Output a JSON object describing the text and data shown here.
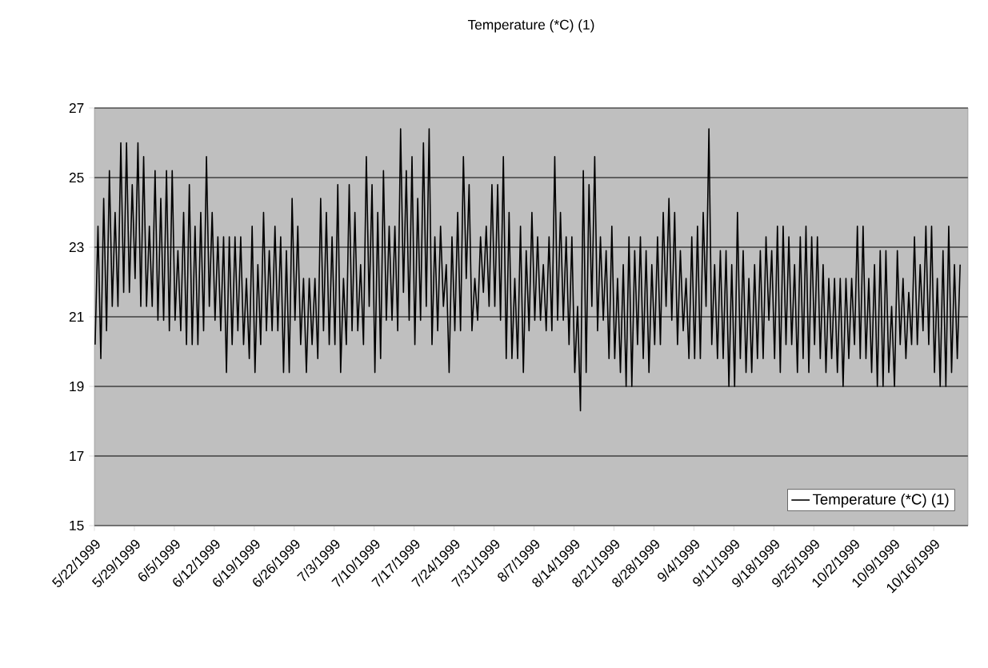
{
  "chart_data": {
    "type": "line",
    "title": "Temperature (*C) (1)",
    "xlim": [
      "1999-05-22",
      "1999-10-22"
    ],
    "ylim": [
      15,
      27
    ],
    "yticks": [
      15,
      17,
      19,
      21,
      23,
      25,
      27
    ],
    "grid": "y",
    "legend": "bottom right",
    "line_style": "solid",
    "xticks": [
      {
        "value": "1999-05-22",
        "label": "5/22/1999"
      },
      {
        "value": "1999-05-29",
        "label": "5/29/1999"
      },
      {
        "value": "1999-06-05",
        "label": "6/5/1999"
      },
      {
        "value": "1999-06-12",
        "label": "6/12/1999"
      },
      {
        "value": "1999-06-19",
        "label": "6/19/1999"
      },
      {
        "value": "1999-06-26",
        "label": "6/26/1999"
      },
      {
        "value": "1999-07-03",
        "label": "7/3/1999"
      },
      {
        "value": "1999-07-10",
        "label": "7/10/1999"
      },
      {
        "value": "1999-07-17",
        "label": "7/17/1999"
      },
      {
        "value": "1999-07-24",
        "label": "7/24/1999"
      },
      {
        "value": "1999-07-31",
        "label": "7/31/1999"
      },
      {
        "value": "1999-08-07",
        "label": "8/7/1999"
      },
      {
        "value": "1999-08-14",
        "label": "8/14/1999"
      },
      {
        "value": "1999-08-21",
        "label": "8/21/1999"
      },
      {
        "value": "1999-08-28",
        "label": "8/28/1999"
      },
      {
        "value": "1999-09-04",
        "label": "9/4/1999"
      },
      {
        "value": "1999-09-11",
        "label": "9/11/1999"
      },
      {
        "value": "1999-09-18",
        "label": "9/18/1999"
      },
      {
        "value": "1999-09-25",
        "label": "9/25/1999"
      },
      {
        "value": "1999-10-02",
        "label": "10/2/1999"
      },
      {
        "value": "1999-10-09",
        "label": "10/9/1999"
      },
      {
        "value": "1999-10-16",
        "label": "10/16/1999"
      }
    ],
    "series": [
      {
        "name": "Temperature (*C) (1)",
        "color": "#000000",
        "x": [
          "1999-05-22T03:00",
          "1999-05-22T15:00",
          "1999-05-23T03:00",
          "1999-05-23T15:00",
          "1999-05-24T03:00",
          "1999-05-24T15:00",
          "1999-05-25T03:00",
          "1999-05-25T15:00",
          "1999-05-26T03:00",
          "1999-05-26T15:00",
          "1999-05-27T03:00",
          "1999-05-27T15:00",
          "1999-05-28T03:00",
          "1999-05-28T15:00",
          "1999-05-29T03:00",
          "1999-05-29T15:00",
          "1999-05-30T03:00",
          "1999-05-30T15:00",
          "1999-05-31T03:00",
          "1999-05-31T15:00",
          "1999-06-01T03:00",
          "1999-06-01T15:00",
          "1999-06-02T03:00",
          "1999-06-02T15:00",
          "1999-06-03T03:00",
          "1999-06-03T15:00",
          "1999-06-04T03:00",
          "1999-06-04T15:00",
          "1999-06-05T03:00",
          "1999-06-05T15:00",
          "1999-06-06T03:00",
          "1999-06-06T15:00",
          "1999-06-07T03:00",
          "1999-06-07T15:00",
          "1999-06-08T03:00",
          "1999-06-08T15:00",
          "1999-06-09T03:00",
          "1999-06-09T15:00",
          "1999-06-10T03:00",
          "1999-06-10T15:00",
          "1999-06-11T03:00",
          "1999-06-11T15:00",
          "1999-06-12T03:00",
          "1999-06-12T15:00",
          "1999-06-13T03:00",
          "1999-06-13T15:00",
          "1999-06-14T03:00",
          "1999-06-14T15:00",
          "1999-06-15T03:00",
          "1999-06-15T15:00",
          "1999-06-16T03:00",
          "1999-06-16T15:00",
          "1999-06-17T03:00",
          "1999-06-17T15:00",
          "1999-06-18T03:00",
          "1999-06-18T15:00",
          "1999-06-19T03:00",
          "1999-06-19T15:00",
          "1999-06-20T03:00",
          "1999-06-20T15:00",
          "1999-06-21T03:00",
          "1999-06-21T15:00",
          "1999-06-22T03:00",
          "1999-06-22T15:00",
          "1999-06-23T03:00",
          "1999-06-23T15:00",
          "1999-06-24T03:00",
          "1999-06-24T15:00",
          "1999-06-25T03:00",
          "1999-06-25T15:00",
          "1999-06-26T03:00",
          "1999-06-26T15:00",
          "1999-06-27T03:00",
          "1999-06-27T15:00",
          "1999-06-28T03:00",
          "1999-06-28T15:00",
          "1999-06-29T03:00",
          "1999-06-29T15:00",
          "1999-06-30T03:00",
          "1999-06-30T15:00",
          "1999-07-01T03:00",
          "1999-07-01T15:00",
          "1999-07-02T03:00",
          "1999-07-02T15:00",
          "1999-07-03T03:00",
          "1999-07-03T15:00",
          "1999-07-04T03:00",
          "1999-07-04T15:00",
          "1999-07-05T03:00",
          "1999-07-05T15:00",
          "1999-07-06T03:00",
          "1999-07-06T15:00",
          "1999-07-07T03:00",
          "1999-07-07T15:00",
          "1999-07-08T03:00",
          "1999-07-08T15:00",
          "1999-07-09T03:00",
          "1999-07-09T15:00",
          "1999-07-10T03:00",
          "1999-07-10T15:00",
          "1999-07-11T03:00",
          "1999-07-11T15:00",
          "1999-07-12T03:00",
          "1999-07-12T15:00",
          "1999-07-13T03:00",
          "1999-07-13T15:00",
          "1999-07-14T03:00",
          "1999-07-14T15:00",
          "1999-07-15T03:00",
          "1999-07-15T15:00",
          "1999-07-16T03:00",
          "1999-07-16T15:00",
          "1999-07-17T03:00",
          "1999-07-17T15:00",
          "1999-07-18T03:00",
          "1999-07-18T15:00",
          "1999-07-19T03:00",
          "1999-07-19T15:00",
          "1999-07-20T03:00",
          "1999-07-20T15:00",
          "1999-07-21T03:00",
          "1999-07-21T15:00",
          "1999-07-22T03:00",
          "1999-07-22T15:00",
          "1999-07-23T03:00",
          "1999-07-23T15:00",
          "1999-07-24T03:00",
          "1999-07-24T15:00",
          "1999-07-25T03:00",
          "1999-07-25T15:00",
          "1999-07-26T03:00",
          "1999-07-26T15:00",
          "1999-07-27T03:00",
          "1999-07-27T15:00",
          "1999-07-28T03:00",
          "1999-07-28T15:00",
          "1999-07-29T03:00",
          "1999-07-29T15:00",
          "1999-07-30T03:00",
          "1999-07-30T15:00",
          "1999-07-31T03:00",
          "1999-07-31T15:00",
          "1999-08-01T03:00",
          "1999-08-01T15:00",
          "1999-08-02T03:00",
          "1999-08-02T15:00",
          "1999-08-03T03:00",
          "1999-08-03T15:00",
          "1999-08-04T03:00",
          "1999-08-04T15:00",
          "1999-08-05T03:00",
          "1999-08-05T15:00",
          "1999-08-06T03:00",
          "1999-08-06T15:00",
          "1999-08-07T03:00",
          "1999-08-07T15:00",
          "1999-08-08T03:00",
          "1999-08-08T15:00",
          "1999-08-09T03:00",
          "1999-08-09T15:00",
          "1999-08-10T03:00",
          "1999-08-10T15:00",
          "1999-08-11T03:00",
          "1999-08-11T15:00",
          "1999-08-12T03:00",
          "1999-08-12T15:00",
          "1999-08-13T03:00",
          "1999-08-13T15:00",
          "1999-08-14T03:00",
          "1999-08-14T15:00",
          "1999-08-15T03:00",
          "1999-08-15T15:00",
          "1999-08-16T03:00",
          "1999-08-16T15:00",
          "1999-08-17T03:00",
          "1999-08-17T15:00",
          "1999-08-18T03:00",
          "1999-08-18T15:00",
          "1999-08-19T03:00",
          "1999-08-19T15:00",
          "1999-08-20T03:00",
          "1999-08-20T15:00",
          "1999-08-21T03:00",
          "1999-08-21T15:00",
          "1999-08-22T03:00",
          "1999-08-22T15:00",
          "1999-08-23T03:00",
          "1999-08-23T15:00",
          "1999-08-24T03:00",
          "1999-08-24T15:00",
          "1999-08-25T03:00",
          "1999-08-25T15:00",
          "1999-08-26T03:00",
          "1999-08-26T15:00",
          "1999-08-27T03:00",
          "1999-08-27T15:00",
          "1999-08-28T03:00",
          "1999-08-28T15:00",
          "1999-08-29T03:00",
          "1999-08-29T15:00",
          "1999-08-30T03:00",
          "1999-08-30T15:00",
          "1999-08-31T03:00",
          "1999-08-31T15:00",
          "1999-09-01T03:00",
          "1999-09-01T15:00",
          "1999-09-02T03:00",
          "1999-09-02T15:00",
          "1999-09-03T03:00",
          "1999-09-03T15:00",
          "1999-09-04T03:00",
          "1999-09-04T15:00",
          "1999-09-05T03:00",
          "1999-09-05T15:00",
          "1999-09-06T03:00",
          "1999-09-06T15:00",
          "1999-09-07T03:00",
          "1999-09-07T15:00",
          "1999-09-08T03:00",
          "1999-09-08T15:00",
          "1999-09-09T03:00",
          "1999-09-09T15:00",
          "1999-09-10T03:00",
          "1999-09-10T15:00",
          "1999-09-11T03:00",
          "1999-09-11T15:00",
          "1999-09-12T03:00",
          "1999-09-12T15:00",
          "1999-09-13T03:00",
          "1999-09-13T15:00",
          "1999-09-14T03:00",
          "1999-09-14T15:00",
          "1999-09-15T03:00",
          "1999-09-15T15:00",
          "1999-09-16T03:00",
          "1999-09-16T15:00",
          "1999-09-17T03:00",
          "1999-09-17T15:00",
          "1999-09-18T03:00",
          "1999-09-18T15:00",
          "1999-09-19T03:00",
          "1999-09-19T15:00",
          "1999-09-20T03:00",
          "1999-09-20T15:00",
          "1999-09-21T03:00",
          "1999-09-21T15:00",
          "1999-09-22T03:00",
          "1999-09-22T15:00",
          "1999-09-23T03:00",
          "1999-09-23T15:00",
          "1999-09-24T03:00",
          "1999-09-24T15:00",
          "1999-09-25T03:00",
          "1999-09-25T15:00",
          "1999-09-26T03:00",
          "1999-09-26T15:00",
          "1999-09-27T03:00",
          "1999-09-27T15:00",
          "1999-09-28T03:00",
          "1999-09-28T15:00",
          "1999-09-29T03:00",
          "1999-09-29T15:00",
          "1999-09-30T03:00",
          "1999-09-30T15:00",
          "1999-10-01T03:00",
          "1999-10-01T15:00",
          "1999-10-02T03:00",
          "1999-10-02T15:00",
          "1999-10-03T03:00",
          "1999-10-03T15:00",
          "1999-10-04T03:00",
          "1999-10-04T15:00",
          "1999-10-05T03:00",
          "1999-10-05T15:00",
          "1999-10-06T03:00",
          "1999-10-06T15:00",
          "1999-10-07T03:00",
          "1999-10-07T15:00",
          "1999-10-08T03:00",
          "1999-10-08T15:00",
          "1999-10-09T03:00",
          "1999-10-09T15:00",
          "1999-10-10T03:00",
          "1999-10-10T15:00",
          "1999-10-11T03:00",
          "1999-10-11T15:00",
          "1999-10-12T03:00",
          "1999-10-12T15:00",
          "1999-10-13T03:00",
          "1999-10-13T15:00",
          "1999-10-14T03:00",
          "1999-10-14T15:00",
          "1999-10-15T03:00",
          "1999-10-15T15:00",
          "1999-10-16T03:00",
          "1999-10-16T15:00",
          "1999-10-17T03:00",
          "1999-10-17T15:00",
          "1999-10-18T03:00",
          "1999-10-18T15:00",
          "1999-10-19T03:00",
          "1999-10-19T15:00",
          "1999-10-20T03:00",
          "1999-10-20T15:00"
        ],
        "values": [
          20.2,
          23.6,
          19.8,
          24.4,
          20.6,
          25.2,
          21.3,
          24.0,
          21.3,
          26.0,
          21.7,
          26.0,
          21.7,
          24.8,
          22.1,
          26.0,
          21.3,
          25.6,
          21.3,
          23.6,
          21.3,
          25.2,
          20.9,
          24.4,
          20.9,
          25.2,
          20.6,
          25.2,
          20.9,
          22.9,
          20.6,
          24.0,
          20.2,
          24.8,
          20.2,
          23.6,
          20.2,
          24.0,
          20.6,
          25.6,
          21.3,
          24.0,
          20.9,
          23.3,
          20.6,
          23.3,
          19.4,
          23.3,
          20.2,
          23.3,
          20.6,
          23.3,
          20.2,
          22.1,
          19.8,
          23.6,
          19.4,
          22.5,
          20.2,
          24.0,
          20.6,
          22.9,
          20.6,
          23.6,
          20.6,
          23.3,
          19.4,
          22.9,
          19.4,
          24.4,
          20.9,
          23.6,
          20.2,
          22.1,
          19.4,
          22.1,
          20.2,
          22.1,
          19.8,
          24.4,
          20.6,
          24.0,
          20.2,
          23.3,
          20.2,
          24.8,
          19.4,
          22.1,
          20.2,
          24.8,
          20.6,
          24.0,
          20.6,
          22.5,
          20.2,
          25.6,
          21.3,
          24.8,
          19.4,
          24.0,
          19.8,
          25.2,
          20.9,
          23.6,
          20.9,
          23.6,
          20.6,
          26.4,
          21.7,
          25.2,
          20.9,
          25.6,
          20.2,
          24.4,
          20.9,
          26.0,
          21.3,
          26.4,
          20.2,
          23.3,
          20.6,
          23.6,
          21.3,
          22.5,
          19.4,
          23.3,
          20.6,
          24.0,
          20.6,
          25.6,
          22.1,
          24.8,
          20.6,
          22.1,
          20.9,
          23.3,
          21.7,
          23.6,
          21.3,
          24.8,
          21.3,
          24.8,
          20.9,
          25.6,
          19.8,
          24.0,
          19.8,
          22.1,
          19.8,
          23.6,
          19.4,
          22.9,
          20.6,
          24.0,
          20.9,
          23.3,
          20.9,
          22.5,
          20.6,
          23.3,
          20.6,
          25.6,
          20.9,
          24.0,
          20.9,
          23.3,
          20.2,
          23.3,
          19.4,
          21.3,
          18.3,
          25.2,
          19.4,
          24.8,
          21.3,
          25.6,
          20.6,
          23.3,
          20.9,
          22.9,
          19.8,
          23.6,
          19.8,
          22.1,
          19.4,
          22.5,
          19.0,
          23.3,
          19.0,
          22.9,
          20.2,
          23.3,
          19.8,
          22.9,
          19.4,
          22.5,
          20.2,
          23.3,
          20.2,
          24.0,
          21.3,
          24.4,
          20.9,
          24.0,
          20.2,
          22.9,
          20.6,
          22.1,
          19.8,
          23.3,
          19.8,
          23.6,
          19.8,
          24.0,
          21.3,
          26.4,
          20.2,
          22.5,
          19.8,
          22.9,
          19.8,
          22.9,
          19.0,
          22.5,
          19.0,
          24.0,
          19.8,
          22.9,
          19.4,
          22.1,
          19.4,
          22.5,
          19.8,
          22.9,
          19.8,
          23.3,
          20.9,
          22.9,
          19.8,
          23.6,
          19.4,
          23.6,
          20.2,
          23.3,
          20.2,
          22.5,
          19.4,
          23.3,
          19.8,
          23.6,
          19.4,
          23.3,
          20.2,
          23.3,
          19.8,
          22.5,
          19.4,
          22.1,
          19.8,
          22.1,
          19.4,
          22.1,
          19.0,
          22.1,
          19.8,
          22.1,
          20.2,
          23.6,
          19.8,
          23.6,
          19.8,
          22.1,
          19.4,
          22.5,
          19.0,
          22.9,
          19.0,
          22.9,
          19.4,
          21.3,
          19.0,
          22.9,
          20.2,
          22.1,
          19.8,
          21.7,
          20.2,
          23.3,
          20.2,
          22.5,
          20.6,
          23.6,
          20.2,
          23.6,
          19.4,
          22.1,
          19.0,
          22.9,
          19.0,
          23.6,
          19.4,
          22.5,
          19.8,
          22.5
        ]
      }
    ]
  }
}
